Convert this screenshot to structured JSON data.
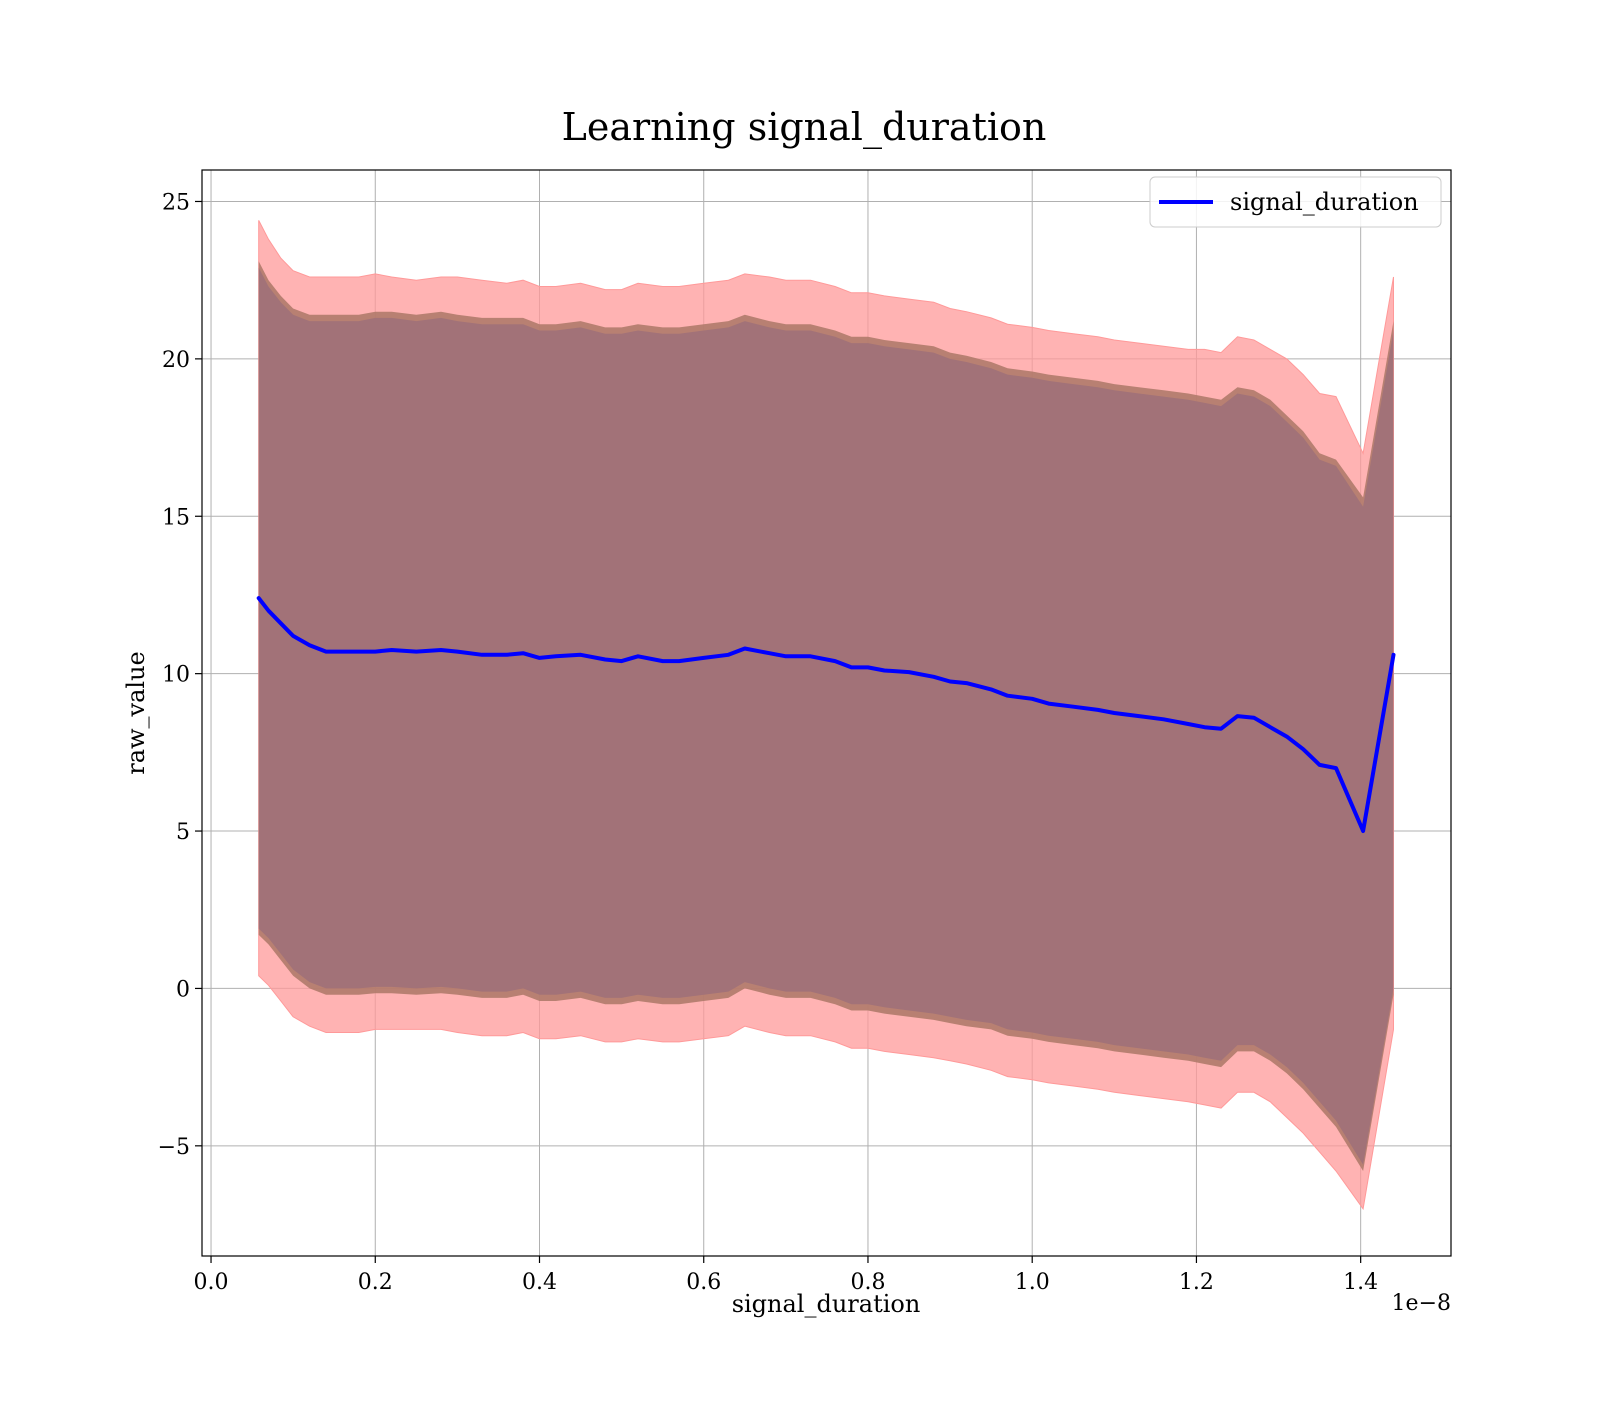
{
  "chart_data": {
    "type": "line",
    "title": "Learning signal_duration",
    "xlabel": "signal_duration",
    "ylabel": "raw_value",
    "x_offset_label": "1e−8",
    "xlim": [
      -0.011,
      1.51
    ],
    "ylim": [
      -8.5,
      26
    ],
    "xticks": [
      0.0,
      0.2,
      0.4,
      0.6,
      0.8,
      1.0,
      1.2,
      1.4
    ],
    "xtick_labels": [
      "0.0",
      "0.2",
      "0.4",
      "0.6",
      "0.8",
      "1.0",
      "1.2",
      "1.4"
    ],
    "yticks": [
      -5,
      0,
      5,
      10,
      15,
      20,
      25
    ],
    "ytick_labels": [
      "−5",
      "0",
      "5",
      "10",
      "15",
      "20",
      "25"
    ],
    "grid": true,
    "legend_position": "top-right",
    "colors": {
      "line": "#0000ff",
      "band_outer": "#ff9999",
      "band_middle": "#b07a6a",
      "band_inner": "#a27278",
      "grid": "#b0b0b0"
    },
    "series": [
      {
        "name": "signal_duration",
        "x": [
          0.058,
          0.07,
          0.085,
          0.1,
          0.12,
          0.14,
          0.16,
          0.18,
          0.2,
          0.22,
          0.25,
          0.28,
          0.3,
          0.33,
          0.36,
          0.38,
          0.4,
          0.42,
          0.45,
          0.48,
          0.5,
          0.52,
          0.55,
          0.57,
          0.6,
          0.63,
          0.65,
          0.68,
          0.7,
          0.73,
          0.76,
          0.78,
          0.8,
          0.82,
          0.85,
          0.88,
          0.9,
          0.92,
          0.95,
          0.97,
          1.0,
          1.02,
          1.05,
          1.08,
          1.1,
          1.13,
          1.16,
          1.19,
          1.21,
          1.23,
          1.25,
          1.27,
          1.29,
          1.31,
          1.33,
          1.35,
          1.37,
          1.403,
          1.44
        ],
        "values": [
          12.4,
          12.0,
          11.6,
          11.2,
          10.9,
          10.7,
          10.7,
          10.7,
          10.7,
          10.75,
          10.7,
          10.75,
          10.7,
          10.6,
          10.6,
          10.65,
          10.5,
          10.55,
          10.6,
          10.45,
          10.4,
          10.55,
          10.4,
          10.4,
          10.5,
          10.6,
          10.8,
          10.65,
          10.55,
          10.55,
          10.4,
          10.2,
          10.2,
          10.1,
          10.05,
          9.9,
          9.75,
          9.7,
          9.5,
          9.3,
          9.2,
          9.05,
          8.95,
          8.85,
          8.75,
          8.65,
          8.55,
          8.4,
          8.3,
          8.25,
          8.65,
          8.6,
          8.3,
          8.0,
          7.6,
          7.1,
          7.0,
          5.0,
          10.6
        ],
        "band_inner": {
          "upper": [
            22.9,
            22.3,
            21.8,
            21.4,
            21.2,
            21.2,
            21.2,
            21.2,
            21.3,
            21.3,
            21.2,
            21.3,
            21.2,
            21.1,
            21.1,
            21.1,
            20.9,
            20.9,
            21.0,
            20.8,
            20.8,
            20.9,
            20.8,
            20.8,
            20.9,
            21.0,
            21.2,
            21.0,
            20.9,
            20.9,
            20.7,
            20.5,
            20.5,
            20.4,
            20.3,
            20.2,
            20.0,
            19.9,
            19.7,
            19.5,
            19.4,
            19.3,
            19.2,
            19.1,
            19.0,
            18.9,
            18.8,
            18.7,
            18.6,
            18.5,
            18.9,
            18.8,
            18.5,
            18.0,
            17.5,
            16.8,
            16.6,
            15.3,
            20.9
          ],
          "lower": [
            1.9,
            1.6,
            1.1,
            0.6,
            0.2,
            0.0,
            0.0,
            0.0,
            0.05,
            0.05,
            0.0,
            0.05,
            0.0,
            -0.1,
            -0.1,
            0.0,
            -0.2,
            -0.2,
            -0.1,
            -0.3,
            -0.3,
            -0.2,
            -0.3,
            -0.3,
            -0.2,
            -0.1,
            0.2,
            0.0,
            -0.1,
            -0.1,
            -0.3,
            -0.5,
            -0.5,
            -0.6,
            -0.7,
            -0.8,
            -0.9,
            -1.0,
            -1.1,
            -1.3,
            -1.4,
            -1.5,
            -1.6,
            -1.7,
            -1.8,
            -1.9,
            -2.0,
            -2.1,
            -2.2,
            -2.3,
            -1.8,
            -1.8,
            -2.1,
            -2.5,
            -3.0,
            -3.6,
            -4.2,
            -5.6,
            0.0
          ]
        },
        "band_middle": {
          "upper": [
            23.1,
            22.5,
            22.0,
            21.6,
            21.4,
            21.4,
            21.4,
            21.4,
            21.5,
            21.5,
            21.4,
            21.5,
            21.4,
            21.3,
            21.3,
            21.3,
            21.1,
            21.1,
            21.2,
            21.0,
            21.0,
            21.1,
            21.0,
            21.0,
            21.1,
            21.2,
            21.4,
            21.2,
            21.1,
            21.1,
            20.9,
            20.7,
            20.7,
            20.6,
            20.5,
            20.4,
            20.2,
            20.1,
            19.9,
            19.7,
            19.6,
            19.5,
            19.4,
            19.3,
            19.2,
            19.1,
            19.0,
            18.9,
            18.8,
            18.7,
            19.1,
            19.0,
            18.7,
            18.2,
            17.7,
            17.0,
            16.8,
            15.6,
            21.2
          ],
          "lower": [
            1.7,
            1.4,
            0.9,
            0.4,
            0.0,
            -0.2,
            -0.2,
            -0.2,
            -0.15,
            -0.15,
            -0.2,
            -0.15,
            -0.2,
            -0.3,
            -0.3,
            -0.2,
            -0.4,
            -0.4,
            -0.3,
            -0.5,
            -0.5,
            -0.4,
            -0.5,
            -0.5,
            -0.4,
            -0.3,
            0.0,
            -0.2,
            -0.3,
            -0.3,
            -0.5,
            -0.7,
            -0.7,
            -0.8,
            -0.9,
            -1.0,
            -1.1,
            -1.2,
            -1.3,
            -1.5,
            -1.6,
            -1.7,
            -1.8,
            -1.9,
            -2.0,
            -2.1,
            -2.2,
            -2.3,
            -2.4,
            -2.5,
            -2.0,
            -2.0,
            -2.3,
            -2.7,
            -3.2,
            -3.8,
            -4.4,
            -5.8,
            -0.2
          ]
        },
        "band_outer": {
          "upper": [
            24.4,
            23.8,
            23.2,
            22.8,
            22.6,
            22.6,
            22.6,
            22.6,
            22.7,
            22.6,
            22.5,
            22.6,
            22.6,
            22.5,
            22.4,
            22.5,
            22.3,
            22.3,
            22.4,
            22.2,
            22.2,
            22.4,
            22.3,
            22.3,
            22.4,
            22.5,
            22.7,
            22.6,
            22.5,
            22.5,
            22.3,
            22.1,
            22.1,
            22.0,
            21.9,
            21.8,
            21.6,
            21.5,
            21.3,
            21.1,
            21.0,
            20.9,
            20.8,
            20.7,
            20.6,
            20.5,
            20.4,
            20.3,
            20.3,
            20.2,
            20.7,
            20.6,
            20.3,
            20.0,
            19.5,
            18.9,
            18.8,
            17.0,
            22.6
          ],
          "lower": [
            0.4,
            0.1,
            -0.4,
            -0.9,
            -1.2,
            -1.4,
            -1.4,
            -1.4,
            -1.3,
            -1.3,
            -1.3,
            -1.3,
            -1.4,
            -1.5,
            -1.5,
            -1.4,
            -1.6,
            -1.6,
            -1.5,
            -1.7,
            -1.7,
            -1.6,
            -1.7,
            -1.7,
            -1.6,
            -1.5,
            -1.2,
            -1.4,
            -1.5,
            -1.5,
            -1.7,
            -1.9,
            -1.9,
            -2.0,
            -2.1,
            -2.2,
            -2.3,
            -2.4,
            -2.6,
            -2.8,
            -2.9,
            -3.0,
            -3.1,
            -3.2,
            -3.3,
            -3.4,
            -3.5,
            -3.6,
            -3.7,
            -3.8,
            -3.3,
            -3.3,
            -3.6,
            -4.1,
            -4.6,
            -5.2,
            -5.8,
            -7.0,
            -1.3
          ]
        }
      }
    ]
  }
}
